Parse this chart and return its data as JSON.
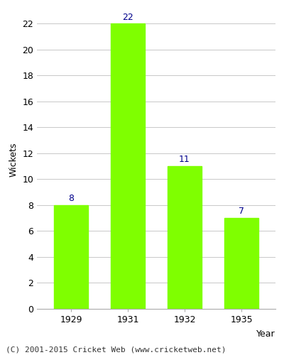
{
  "years": [
    "1929",
    "1931",
    "1932",
    "1935"
  ],
  "values": [
    8,
    22,
    11,
    7
  ],
  "bar_color": "#7FFF00",
  "bar_edge_color": "#7FFF00",
  "label_color": "#00008B",
  "ylabel": "Wickets",
  "xlabel": "Year",
  "ylim": [
    0,
    23
  ],
  "yticks": [
    0,
    2,
    4,
    6,
    8,
    10,
    12,
    14,
    16,
    18,
    20,
    22
  ],
  "grid_color": "#c8c8c8",
  "background_color": "#ffffff",
  "footer_text": "(C) 2001-2015 Cricket Web (www.cricketweb.net)",
  "label_fontsize": 9,
  "axis_label_fontsize": 9,
  "tick_fontsize": 9,
  "footer_fontsize": 8
}
